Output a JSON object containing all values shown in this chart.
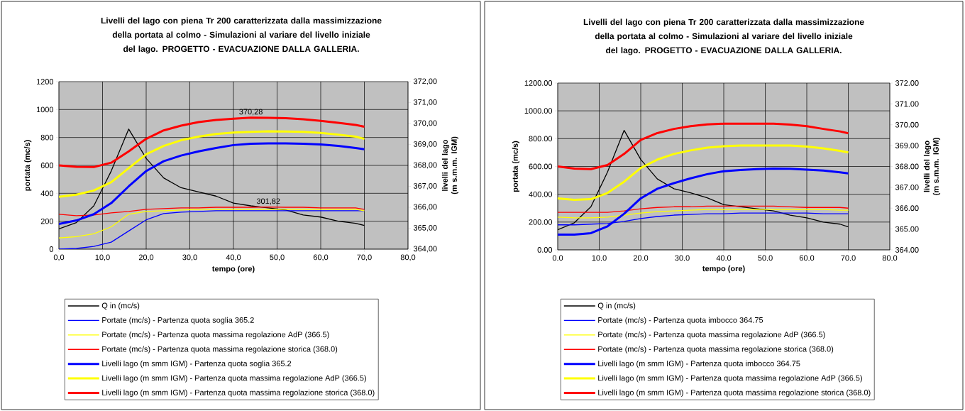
{
  "chart_data": [
    {
      "type": "line",
      "title": "Livelli del lago con piena Tr 200 caratterizzata dalla massimizzazione della portata al colmo - Simulazioni al variare del livello iniziale del lago. PROGETTO - EVACUAZIONE DALLA GALLERIA.",
      "xlabel": "tempo (ore)",
      "ylabel": "portata (mc/s)",
      "y2label": "livelli del lago (m s.m.m. IGM)",
      "x": [
        0,
        4,
        8,
        12,
        16,
        20,
        24,
        28,
        32,
        36,
        40,
        44,
        48,
        52,
        56,
        60,
        64,
        68,
        70
      ],
      "series": [
        {
          "name": "Q in (mc/s)",
          "color": "#000000",
          "values": [
            145,
            190,
            310,
            560,
            860,
            650,
            510,
            440,
            410,
            380,
            330,
            310,
            295,
            280,
            245,
            230,
            200,
            185,
            170
          ]
        },
        {
          "name": "Portate (mc/s) - Partenza quota soglia 365.2",
          "color": "#0000ff",
          "values": [
            0,
            5,
            20,
            50,
            130,
            210,
            255,
            265,
            270,
            275,
            275,
            275,
            275,
            275,
            275,
            275,
            275,
            275,
            275
          ]
        },
        {
          "name": "Portate (mc/s) - Partenza quota massima regolazione AdP (366.5)",
          "color": "#ffff00",
          "values": [
            80,
            90,
            110,
            160,
            250,
            270,
            275,
            280,
            285,
            285,
            285,
            285,
            285,
            285,
            285,
            285,
            285,
            285,
            275
          ]
        },
        {
          "name": "Portate (mc/s) - Partenza quota massima regolazione storica (368.0)",
          "color": "#ff0000",
          "values": [
            250,
            240,
            245,
            260,
            270,
            285,
            290,
            295,
            295,
            300,
            300,
            300,
            301.82,
            300,
            300,
            295,
            295,
            295,
            285
          ],
          "value_labels": [
            null,
            null,
            null,
            null,
            null,
            null,
            null,
            null,
            null,
            null,
            null,
            null,
            "301,82",
            null,
            null,
            null,
            null,
            null,
            null
          ]
        },
        {
          "name": "Livelli lago (m smm IGM) - Partenza quota soglia 365.2",
          "color": "#0000ff",
          "axis": "y2",
          "values": [
            365.2,
            365.37,
            365.67,
            366.2,
            367.0,
            367.73,
            368.2,
            368.47,
            368.67,
            368.83,
            368.97,
            369.03,
            369.05,
            369.05,
            369.03,
            369.0,
            368.93,
            368.83,
            368.77
          ]
        },
        {
          "name": "Livelli lago (m smm IGM) - Partenza quota massima regolazione AdP (366.5)",
          "color": "#ffff00",
          "axis": "y2",
          "values": [
            366.5,
            366.6,
            366.8,
            367.2,
            367.87,
            368.53,
            368.93,
            369.2,
            369.37,
            369.5,
            369.57,
            369.6,
            369.63,
            369.62,
            369.6,
            369.55,
            369.47,
            369.37,
            369.27
          ]
        },
        {
          "name": "Livelli lago (m smm IGM) - Partenza quota massima regolazione storica (368.0)",
          "color": "#ff0000",
          "axis": "y2",
          "values": [
            368.0,
            367.93,
            367.92,
            368.13,
            368.67,
            369.27,
            369.67,
            369.9,
            370.07,
            370.17,
            370.23,
            370.28,
            370.27,
            370.25,
            370.2,
            370.13,
            370.03,
            369.93,
            369.85
          ],
          "value_labels": [
            null,
            null,
            null,
            null,
            null,
            null,
            null,
            null,
            null,
            null,
            null,
            "370,28",
            null,
            null,
            null,
            null,
            null,
            null,
            null
          ]
        }
      ],
      "xlim": [
        0,
        80
      ],
      "ylim": [
        0,
        1200
      ],
      "y2lim": [
        364,
        372
      ],
      "xticks": [
        {
          "value": 0,
          "label": "0,0"
        },
        {
          "value": 10,
          "label": "10,0"
        },
        {
          "value": 20,
          "label": "20,0"
        },
        {
          "value": 30,
          "label": "30,0"
        },
        {
          "value": 40,
          "label": "40,0"
        },
        {
          "value": 50,
          "label": "50,0"
        },
        {
          "value": 60,
          "label": "60,0"
        },
        {
          "value": 70,
          "label": "70,0"
        },
        {
          "value": 80,
          "label": "80,0"
        }
      ],
      "yticks": [
        0,
        200,
        400,
        600,
        800,
        1000,
        1200
      ],
      "y2ticks": [
        {
          "value": 364,
          "label": "364,00"
        },
        {
          "value": 365,
          "label": "365,00"
        },
        {
          "value": 366,
          "label": "366,00"
        },
        {
          "value": 367,
          "label": "367,00"
        },
        {
          "value": 368,
          "label": "368,00"
        },
        {
          "value": 369,
          "label": "369,00"
        },
        {
          "value": 370,
          "label": "370,00"
        },
        {
          "value": 371,
          "label": "371,00"
        },
        {
          "value": 372,
          "label": "372,00"
        }
      ],
      "grid": true,
      "legend": "bottom",
      "line_style": "solid"
    },
    {
      "type": "line",
      "title": "Livelli del lago con piena Tr 200 caratterizzata dalla massimizzazione della portata al colmo - Simulazioni al variare del livello iniziale del lago. PROGETTO - EVACUAZIONE DALLA GALLERIA.",
      "xlabel": "tempo (ore)",
      "ylabel": "portata (mc/s)",
      "y2label": "livelli del lago (m s.m.m. IGM)",
      "x": [
        0,
        4,
        8,
        12,
        16,
        20,
        24,
        28,
        32,
        36,
        40,
        44,
        48,
        52,
        56,
        60,
        64,
        68,
        70
      ],
      "series": [
        {
          "name": "Q in (mc/s)",
          "color": "#000000",
          "values": [
            145,
            195,
            310,
            560,
            860,
            650,
            510,
            440,
            410,
            375,
            325,
            310,
            295,
            280,
            250,
            230,
            200,
            185,
            165
          ]
        },
        {
          "name": "Portate (mc/s) - Partenza quota imbocco 364.75",
          "color": "#0000ff",
          "values": [
            180,
            180,
            185,
            190,
            205,
            225,
            240,
            250,
            255,
            260,
            260,
            265,
            265,
            265,
            265,
            265,
            260,
            260,
            260
          ]
        },
        {
          "name": "Portate (mc/s) - Partenza quota massima regolazione AdP (366.5)",
          "color": "#ffff00",
          "values": [
            235,
            230,
            230,
            235,
            250,
            265,
            275,
            280,
            285,
            290,
            290,
            290,
            290,
            290,
            290,
            290,
            290,
            285,
            285
          ]
        },
        {
          "name": "Portate (mc/s) - Partenza quota massima regolazione storica (368.0)",
          "color": "#ff0000",
          "values": [
            270,
            270,
            270,
            270,
            280,
            295,
            305,
            310,
            310,
            315,
            315,
            315,
            315,
            315,
            310,
            305,
            305,
            305,
            300
          ]
        },
        {
          "name": "Livelli lago (m smm IGM) - Partenza quota imbocco 364.75",
          "color": "#0000ff",
          "axis": "y2",
          "values": [
            364.73,
            364.73,
            364.8,
            365.13,
            365.73,
            366.47,
            366.93,
            367.2,
            367.43,
            367.63,
            367.77,
            367.83,
            367.87,
            367.9,
            367.89,
            367.85,
            367.8,
            367.72,
            367.67
          ]
        },
        {
          "name": "Livelli lago (m smm IGM) - Partenza quota massima regolazione AdP (366.5)",
          "color": "#ffff00",
          "axis": "y2",
          "values": [
            366.47,
            366.4,
            366.43,
            366.73,
            367.27,
            367.93,
            368.33,
            368.6,
            368.77,
            368.9,
            368.97,
            369.0,
            369.0,
            369.0,
            369.0,
            368.95,
            368.87,
            368.75,
            368.67
          ]
        },
        {
          "name": "Livelli lago (m smm IGM) - Partenza quota massima regolazione storica (368.0)",
          "color": "#ff0000",
          "axis": "y2",
          "values": [
            368.0,
            367.9,
            367.87,
            368.07,
            368.6,
            369.27,
            369.6,
            369.8,
            369.93,
            370.02,
            370.05,
            370.05,
            370.05,
            370.05,
            370.01,
            369.93,
            369.8,
            369.68,
            369.59
          ]
        }
      ],
      "xlim": [
        0,
        80
      ],
      "ylim": [
        0,
        1200
      ],
      "y2lim": [
        364,
        372
      ],
      "xticks": [
        {
          "value": 0,
          "label": "0.0"
        },
        {
          "value": 10,
          "label": "10.0"
        },
        {
          "value": 20,
          "label": "20.0"
        },
        {
          "value": 30,
          "label": "30.0"
        },
        {
          "value": 40,
          "label": "40.0"
        },
        {
          "value": 50,
          "label": "50.0"
        },
        {
          "value": 60,
          "label": "60.0"
        },
        {
          "value": 70,
          "label": "70.0"
        },
        {
          "value": 80,
          "label": "80.0"
        }
      ],
      "yticks": [
        {
          "value": 0,
          "label": "0.00"
        },
        {
          "value": 200,
          "label": "200.00"
        },
        {
          "value": 400,
          "label": "400.00"
        },
        {
          "value": 600,
          "label": "600.00"
        },
        {
          "value": 800,
          "label": "800.00"
        },
        {
          "value": 1000,
          "label": "1000.00"
        },
        {
          "value": 1200,
          "label": "1200.00"
        }
      ],
      "y2ticks": [
        {
          "value": 364,
          "label": "364.00"
        },
        {
          "value": 365,
          "label": "365.00"
        },
        {
          "value": 366,
          "label": "366.00"
        },
        {
          "value": 367,
          "label": "367.00"
        },
        {
          "value": 368,
          "label": "368.00"
        },
        {
          "value": 369,
          "label": "369.00"
        },
        {
          "value": 370,
          "label": "370.00"
        },
        {
          "value": 371,
          "label": "371.00"
        },
        {
          "value": 372,
          "label": "372.00"
        }
      ],
      "grid": true,
      "legend": "bottom",
      "line_style": "solid"
    }
  ]
}
